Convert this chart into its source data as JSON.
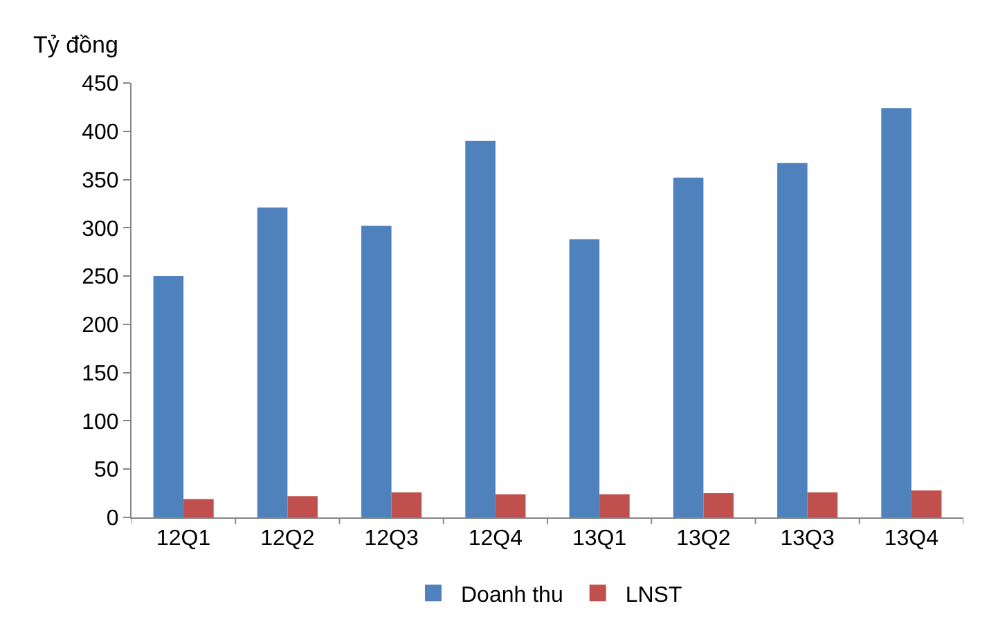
{
  "chart_data": {
    "type": "bar",
    "ylabel": "Tỷ đồng",
    "categories": [
      "12Q1",
      "12Q2",
      "12Q3",
      "12Q4",
      "13Q1",
      "13Q2",
      "13Q3",
      "13Q4"
    ],
    "series": [
      {
        "name": "Doanh thu",
        "color": "#4f81bd",
        "values": [
          250,
          321,
          302,
          390,
          288,
          352,
          367,
          424
        ]
      },
      {
        "name": "LNST",
        "color": "#c0504d",
        "values": [
          19,
          22,
          26,
          24,
          24,
          25,
          26,
          28
        ]
      }
    ],
    "ylim": [
      0,
      450
    ],
    "yticks": [
      0,
      50,
      100,
      150,
      200,
      250,
      300,
      350,
      400,
      450
    ],
    "grid": false,
    "legend": "bottom"
  }
}
